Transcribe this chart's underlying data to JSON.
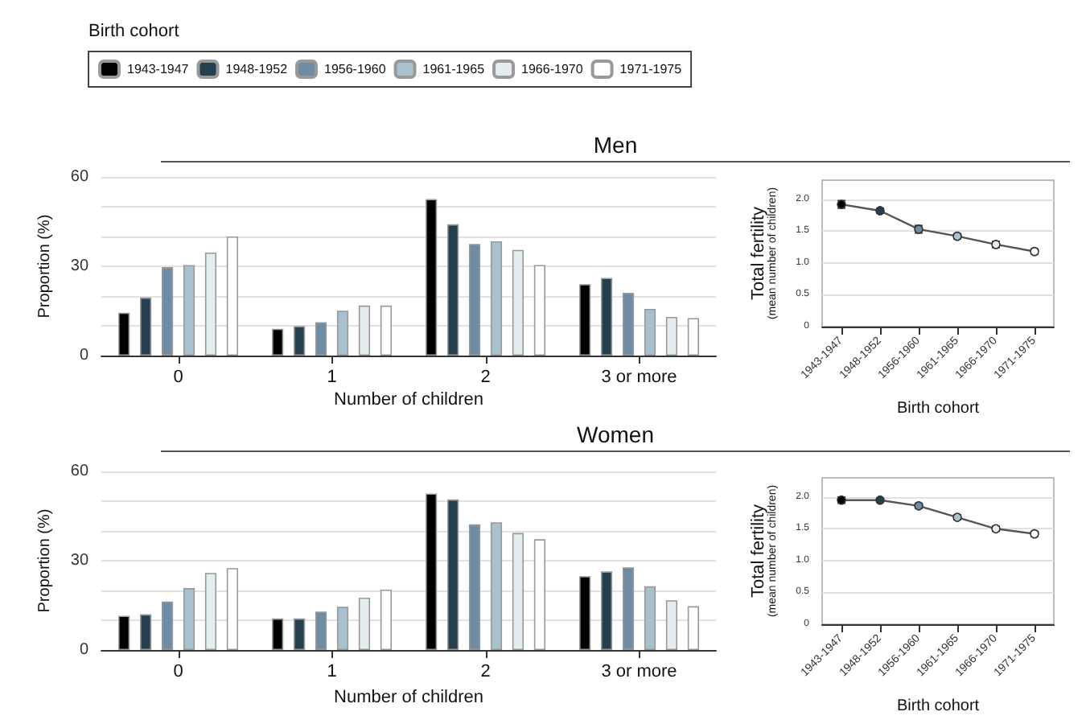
{
  "chart_data": [
    {
      "type": "bar",
      "title": "Men",
      "xlabel": "Number of children",
      "ylabel": "Proportion (%)",
      "legend_title": "Birth cohort",
      "legend": "top left",
      "grid": "y",
      "categories": [
        "0",
        "1",
        "2",
        "3 or more"
      ],
      "ylim": [
        0,
        60
      ],
      "yticks": [
        0,
        {
          "value": 10,
          "label": null
        },
        {
          "value": 20,
          "label": null
        },
        30,
        {
          "value": 40,
          "label": null
        },
        {
          "value": 50,
          "label": null
        },
        60
      ],
      "series": [
        {
          "name": "1943-1947",
          "color": "#000000",
          "values": [
            14.4,
            9.0,
            52.6,
            24.0
          ]
        },
        {
          "name": "1948-1952",
          "color": "#24404e",
          "values": [
            19.5,
            9.9,
            44.1,
            26.1
          ]
        },
        {
          "name": "1956-1960",
          "color": "#6e8ca3",
          "values": [
            29.7,
            11.2,
            37.5,
            21.1
          ]
        },
        {
          "name": "1961-1965",
          "color": "#a9c0cf",
          "values": [
            30.4,
            15.1,
            38.4,
            15.7
          ]
        },
        {
          "name": "1966-1970",
          "color": "#e3edf0",
          "values": [
            34.6,
            16.8,
            35.5,
            13.0
          ]
        },
        {
          "name": "1971-1975",
          "color": "#ffffff",
          "values": [
            40.0,
            16.8,
            30.4,
            12.6
          ]
        }
      ]
    },
    {
      "type": "line",
      "xlabel": "Birth cohort",
      "ylabel": "Total fertility\n(mean number of children)",
      "grid": "y",
      "marker": "circle",
      "line_style": "solid",
      "categories": [
        "1943-1947",
        "1948-1952",
        "1956-1960",
        "1961-1965",
        "1966-1970",
        "1971-1975"
      ],
      "ylim": [
        0,
        2.3
      ],
      "yticks": [
        {
          "value": 0,
          "label": "0"
        },
        {
          "value": 0.5,
          "label": "0.5"
        },
        {
          "value": 1,
          "label": "1.0"
        },
        {
          "value": 1.5,
          "label": "1.5"
        },
        {
          "value": 2,
          "label": "2.0"
        }
      ],
      "series": [
        {
          "color": "#555555",
          "colors": [
            "#000000",
            "#24404e",
            "#6e8ca3",
            "#a9c0cf",
            "#e3edf0",
            "#ffffff"
          ],
          "values": [
            1.92,
            1.82,
            1.53,
            1.42,
            1.29,
            1.18
          ],
          "errors": [
            0.06,
            0.04,
            0.06,
            0.04,
            0.05,
            0.04
          ]
        }
      ]
    },
    {
      "type": "bar",
      "title": "Women",
      "xlabel": "Number of children",
      "ylabel": "Proportion (%)",
      "grid": "y",
      "categories": [
        "0",
        "1",
        "2",
        "3 or more"
      ],
      "ylim": [
        0,
        60
      ],
      "yticks": [
        0,
        {
          "value": 10,
          "label": null
        },
        {
          "value": 20,
          "label": null
        },
        30,
        {
          "value": 40,
          "label": null
        },
        {
          "value": 50,
          "label": null
        },
        60
      ],
      "series": [
        {
          "color": "#000000",
          "values": [
            11.5,
            10.6,
            52.6,
            24.8
          ]
        },
        {
          "color": "#24404e",
          "values": [
            12.0,
            10.6,
            50.6,
            26.4
          ]
        },
        {
          "color": "#6e8ca3",
          "values": [
            16.3,
            12.9,
            42.2,
            27.8
          ]
        },
        {
          "color": "#a9c0cf",
          "values": [
            20.8,
            14.5,
            42.9,
            21.4
          ]
        },
        {
          "color": "#e3edf0",
          "values": [
            25.9,
            17.6,
            39.3,
            16.7
          ]
        },
        {
          "color": "#ffffff",
          "values": [
            27.5,
            20.3,
            37.2,
            14.7
          ]
        }
      ]
    },
    {
      "type": "line",
      "xlabel": "Birth cohort",
      "ylabel": "Total fertility\n(mean number of children)",
      "grid": "y",
      "marker": "circle",
      "line_style": "solid",
      "categories": [
        "1943-1947",
        "1948-1952",
        "1956-1960",
        "1961-1965",
        "1966-1970",
        "1971-1975"
      ],
      "ylim": [
        0,
        2.3
      ],
      "yticks": [
        {
          "value": 0,
          "label": "0"
        },
        {
          "value": 0.5,
          "label": "0.5"
        },
        {
          "value": 1,
          "label": "1.0"
        },
        {
          "value": 1.5,
          "label": "1.5"
        },
        {
          "value": 2,
          "label": "2.0"
        }
      ],
      "series": [
        {
          "color": "#555555",
          "colors": [
            "#000000",
            "#24404e",
            "#6e8ca3",
            "#a9c0cf",
            "#e3edf0",
            "#ffffff"
          ],
          "values": [
            1.95,
            1.95,
            1.86,
            1.68,
            1.5,
            1.42
          ],
          "errors": [
            0.05,
            0.03,
            0.04,
            0.04,
            0.04,
            0.04
          ]
        }
      ]
    }
  ]
}
